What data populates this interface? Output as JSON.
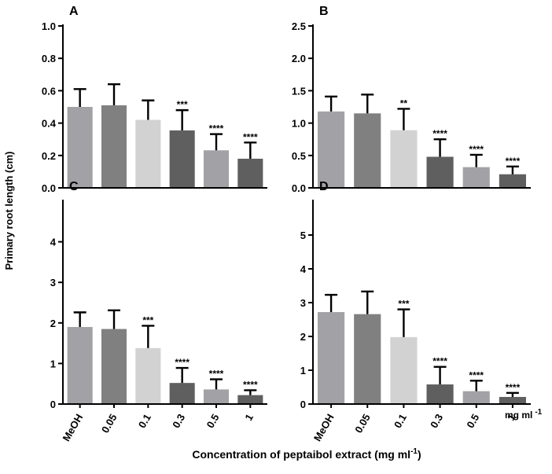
{
  "figure": {
    "ylabel": "Primary root length (cm)",
    "xlabel": "Concentration of peptaibol extract (mg ml",
    "xlabel_sup": "-1",
    "xlabel_close": ")",
    "panel_unit": "mg ml",
    "panel_unit_sup": "-1"
  },
  "chart_data": [
    {
      "type": "bar",
      "panel": "A",
      "categories": [
        "MeOH",
        "0.05",
        "0.1",
        "0.3",
        "0.5",
        "1"
      ],
      "values": [
        0.5,
        0.51,
        0.42,
        0.355,
        0.232,
        0.18
      ],
      "errors": [
        0.11,
        0.13,
        0.12,
        0.125,
        0.1,
        0.1
      ],
      "significance": [
        "",
        "",
        "",
        "***",
        "****",
        "****"
      ],
      "colors": [
        "#a2a2a6",
        "#808080",
        "#d2d2d2",
        "#5f5f5f",
        "#a2a2a6",
        "#5f5f5f"
      ],
      "ylim": [
        0,
        1.0
      ],
      "yticks": [
        0.0,
        0.2,
        0.4,
        0.6,
        0.8,
        1.0
      ],
      "ytick_labels": [
        "0.0",
        "0.2",
        "0.4",
        "0.6",
        "0.8",
        "1.0"
      ],
      "show_xlabels": false
    },
    {
      "type": "bar",
      "panel": "B",
      "categories": [
        "MeOH",
        "0.05",
        "0.1",
        "0.3",
        "0.5",
        "1"
      ],
      "values": [
        1.18,
        1.15,
        0.89,
        0.48,
        0.32,
        0.21
      ],
      "errors": [
        0.23,
        0.29,
        0.33,
        0.27,
        0.19,
        0.12
      ],
      "significance": [
        "",
        "",
        "**",
        "****",
        "****",
        "****"
      ],
      "colors": [
        "#a2a2a6",
        "#808080",
        "#d2d2d2",
        "#5f5f5f",
        "#a2a2a6",
        "#5f5f5f"
      ],
      "ylim": [
        0,
        2.5
      ],
      "yticks": [
        0.0,
        0.5,
        1.0,
        1.5,
        2.0,
        2.5
      ],
      "ytick_labels": [
        "0.0",
        "0.5",
        "1.0",
        "1.5",
        "2.0",
        "2.5"
      ],
      "show_xlabels": false
    },
    {
      "type": "bar",
      "panel": "C",
      "categories": [
        "MeOH",
        "0.05",
        "0.1",
        "0.3",
        "0.5",
        "1"
      ],
      "values": [
        1.9,
        1.85,
        1.38,
        0.52,
        0.36,
        0.22
      ],
      "errors": [
        0.36,
        0.46,
        0.55,
        0.37,
        0.25,
        0.12
      ],
      "significance": [
        "",
        "",
        "***",
        "****",
        "****",
        "****"
      ],
      "colors": [
        "#a2a2a6",
        "#808080",
        "#d2d2d2",
        "#5f5f5f",
        "#a2a2a6",
        "#5f5f5f"
      ],
      "ylim": [
        0,
        5
      ],
      "yticks": [
        0,
        1,
        2,
        3,
        4
      ],
      "ytick_labels": [
        "0",
        "1",
        "2",
        "3",
        "4"
      ],
      "show_xlabels": true
    },
    {
      "type": "bar",
      "panel": "D",
      "categories": [
        "MeOH",
        "0.05",
        "0.1",
        "0.3",
        "0.5",
        "1"
      ],
      "values": [
        2.72,
        2.66,
        1.98,
        0.58,
        0.38,
        0.21
      ],
      "errors": [
        0.51,
        0.67,
        0.82,
        0.52,
        0.31,
        0.12
      ],
      "significance": [
        "",
        "",
        "***",
        "****",
        "****",
        "****"
      ],
      "colors": [
        "#a2a2a6",
        "#808080",
        "#d2d2d2",
        "#5f5f5f",
        "#a2a2a6",
        "#5f5f5f"
      ],
      "ylim": [
        0,
        6
      ],
      "yticks": [
        0,
        1,
        2,
        3,
        4,
        5
      ],
      "ytick_labels": [
        "0",
        "1",
        "2",
        "3",
        "4",
        "5"
      ],
      "show_xlabels": true
    }
  ]
}
